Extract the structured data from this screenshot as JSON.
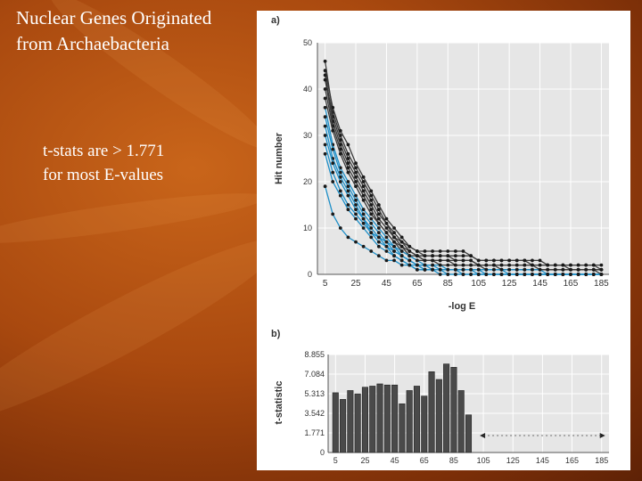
{
  "slide": {
    "title_line1": "Nuclear Genes Originated",
    "title_line2": "from Archaebacteria",
    "note_line1": "t-stats are > 1.771",
    "note_line2": "for most E-values"
  },
  "colors": {
    "background": "#a9490f",
    "plot_bg": "#e6e6e6",
    "dark_series": "#3a3a3a",
    "blue_series": "#1e8fc8",
    "bar": "#4a4a4a"
  },
  "chart_data": [
    {
      "panel_label": "a)",
      "type": "line",
      "xlabel": "-log E",
      "ylabel": "Hit number",
      "x": [
        5,
        10,
        15,
        20,
        25,
        30,
        35,
        40,
        45,
        50,
        55,
        60,
        65,
        70,
        75,
        80,
        85,
        90,
        95,
        100,
        105,
        110,
        115,
        120,
        125,
        130,
        135,
        140,
        145,
        150,
        155,
        160,
        165,
        170,
        175,
        180,
        185
      ],
      "xticks": [
        5,
        25,
        45,
        65,
        85,
        105,
        125,
        145,
        165,
        185
      ],
      "yticks": [
        0,
        10,
        20,
        30,
        40,
        50
      ],
      "xlim": [
        0,
        190
      ],
      "ylim": [
        0,
        50
      ],
      "grid": true,
      "series": [
        {
          "group": "dark",
          "values": [
            46,
            35,
            30,
            26,
            23,
            20,
            17,
            14,
            11,
            9,
            7,
            6,
            5,
            5,
            5,
            5,
            5,
            5,
            5,
            4,
            3,
            3,
            3,
            3,
            3,
            3,
            3,
            3,
            3,
            2,
            2,
            2,
            2,
            2,
            2,
            2,
            2
          ]
        },
        {
          "group": "dark",
          "values": [
            44,
            36,
            31,
            28,
            24,
            21,
            18,
            15,
            12,
            10,
            8,
            6,
            5,
            4,
            4,
            4,
            4,
            4,
            4,
            4,
            3,
            3,
            3,
            3,
            3,
            3,
            3,
            2,
            2,
            2,
            2,
            2,
            2,
            2,
            2,
            2,
            1
          ]
        },
        {
          "group": "dark",
          "values": [
            43,
            34,
            29,
            25,
            22,
            19,
            16,
            13,
            11,
            8,
            7,
            5,
            4,
            4,
            4,
            4,
            4,
            3,
            3,
            3,
            2,
            2,
            2,
            2,
            2,
            2,
            2,
            2,
            2,
            2,
            2,
            2,
            1,
            1,
            1,
            1,
            1
          ]
        },
        {
          "group": "dark",
          "values": [
            42,
            33,
            28,
            24,
            21,
            18,
            15,
            12,
            10,
            8,
            6,
            5,
            4,
            3,
            3,
            3,
            3,
            3,
            3,
            3,
            2,
            2,
            2,
            2,
            2,
            2,
            2,
            2,
            1,
            1,
            1,
            1,
            1,
            1,
            1,
            1,
            1
          ]
        },
        {
          "group": "dark",
          "values": [
            40,
            32,
            27,
            23,
            20,
            17,
            14,
            11,
            9,
            7,
            6,
            4,
            4,
            3,
            3,
            3,
            3,
            2,
            2,
            2,
            2,
            2,
            2,
            1,
            1,
            1,
            1,
            1,
            1,
            1,
            1,
            1,
            1,
            1,
            1,
            1,
            1
          ]
        },
        {
          "group": "dark",
          "values": [
            38,
            31,
            26,
            22,
            19,
            16,
            13,
            11,
            9,
            7,
            5,
            4,
            3,
            3,
            3,
            2,
            2,
            2,
            2,
            2,
            2,
            1,
            1,
            1,
            1,
            1,
            1,
            1,
            1,
            1,
            1,
            1,
            1,
            1,
            1,
            1,
            0
          ]
        },
        {
          "group": "blue",
          "values": [
            36,
            28,
            23,
            20,
            17,
            14,
            12,
            10,
            8,
            6,
            5,
            4,
            3,
            2,
            2,
            2,
            1,
            1,
            1,
            1,
            1,
            1,
            1,
            1,
            1,
            1,
            1,
            1,
            1,
            0,
            0,
            0,
            0,
            0,
            0,
            0,
            0
          ]
        },
        {
          "group": "blue",
          "values": [
            34,
            27,
            22,
            19,
            16,
            13,
            11,
            9,
            7,
            6,
            4,
            3,
            2,
            2,
            2,
            1,
            1,
            1,
            1,
            1,
            1,
            1,
            1,
            1,
            0,
            0,
            0,
            0,
            0,
            0,
            0,
            0,
            0,
            0,
            0,
            0,
            0
          ]
        },
        {
          "group": "blue",
          "values": [
            32,
            25,
            21,
            18,
            15,
            12,
            10,
            8,
            7,
            5,
            4,
            3,
            2,
            2,
            1,
            1,
            1,
            1,
            1,
            1,
            1,
            0,
            0,
            0,
            0,
            0,
            0,
            0,
            0,
            0,
            0,
            0,
            0,
            0,
            0,
            0,
            0
          ]
        },
        {
          "group": "blue",
          "values": [
            30,
            24,
            20,
            17,
            14,
            12,
            9,
            8,
            6,
            5,
            4,
            3,
            2,
            1,
            1,
            1,
            1,
            1,
            1,
            1,
            0,
            0,
            0,
            0,
            0,
            0,
            0,
            0,
            0,
            0,
            0,
            0,
            0,
            0,
            0,
            0,
            0
          ]
        },
        {
          "group": "blue",
          "values": [
            28,
            22,
            18,
            15,
            13,
            11,
            9,
            7,
            6,
            4,
            3,
            2,
            2,
            1,
            1,
            1,
            1,
            1,
            0,
            0,
            0,
            0,
            0,
            0,
            0,
            0,
            0,
            0,
            0,
            0,
            0,
            0,
            0,
            0,
            0,
            0,
            0
          ]
        },
        {
          "group": "blue",
          "values": [
            26,
            20,
            17,
            14,
            12,
            10,
            8,
            6,
            5,
            4,
            3,
            2,
            1,
            1,
            1,
            1,
            0,
            0,
            0,
            0,
            0,
            0,
            0,
            0,
            0,
            0,
            0,
            0,
            0,
            0,
            0,
            0,
            0,
            0,
            0,
            0,
            0
          ]
        },
        {
          "group": "blue",
          "values": [
            19,
            13,
            10,
            8,
            7,
            6,
            5,
            4,
            3,
            3,
            2,
            2,
            1,
            1,
            1,
            0,
            0,
            0,
            0,
            0,
            0,
            0,
            0,
            0,
            0,
            0,
            0,
            0,
            0,
            0,
            0,
            0,
            0,
            0,
            0,
            0,
            0
          ]
        }
      ]
    },
    {
      "panel_label": "b)",
      "type": "bar",
      "xlabel": "",
      "ylabel": "t-statistic",
      "x": [
        5,
        10,
        15,
        20,
        25,
        30,
        35,
        40,
        45,
        50,
        55,
        60,
        65,
        70,
        75,
        80,
        85,
        90,
        95
      ],
      "values": [
        5.4,
        4.8,
        5.6,
        5.3,
        5.9,
        6.0,
        6.2,
        6.1,
        6.1,
        4.4,
        5.6,
        6.0,
        5.1,
        7.3,
        6.6,
        8.0,
        7.7,
        5.6,
        3.4
      ],
      "xticks": [
        5,
        25,
        45,
        65,
        85,
        105,
        125,
        145,
        165,
        185
      ],
      "yticks": [
        "0",
        "1.771",
        "3.542",
        "5.313",
        "7.084",
        "8.855"
      ],
      "ytick_values": [
        0,
        1.771,
        3.542,
        5.313,
        7.084,
        8.855
      ],
      "xlim": [
        0,
        190
      ],
      "ylim": [
        0,
        8.855
      ],
      "grid": true,
      "arrow_marks": [
        105,
        185
      ]
    }
  ]
}
